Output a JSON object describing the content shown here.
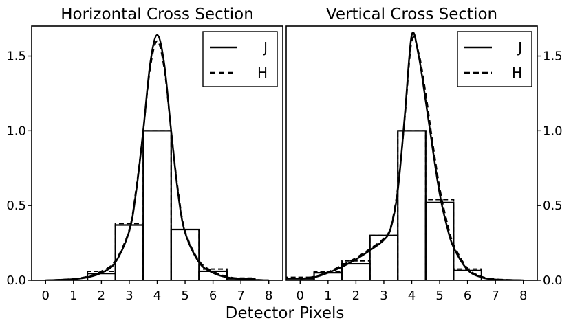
{
  "xlabel": "Detector Pixels",
  "chart_data": [
    {
      "type": "line",
      "title": "Horizontal Cross Section",
      "xlim": [
        -0.5,
        8.5
      ],
      "ylim": [
        0,
        1.7
      ],
      "xticks": [
        "0",
        "1",
        "2",
        "3",
        "4",
        "5",
        "6",
        "7",
        "8"
      ],
      "yticks": [
        "0.0",
        "0.5",
        "1.0",
        "1.5"
      ],
      "ytick_side": "left",
      "legend": "top-right",
      "bars": {
        "J": [
          0.0,
          0.0,
          0.045,
          0.37,
          1.0,
          0.34,
          0.06,
          0.01,
          0.0
        ],
        "H": [
          0.0,
          0.0,
          0.06,
          0.38,
          1.0,
          0.34,
          0.075,
          0.015,
          0.0
        ]
      },
      "series": [
        {
          "name": "J",
          "style": "solid",
          "x": [
            0,
            0.5,
            1,
            1.5,
            2,
            2.5,
            3,
            3.25,
            3.5,
            3.75,
            4,
            4.25,
            4.5,
            4.75,
            5,
            5.5,
            6,
            6.5,
            7,
            7.5,
            8
          ],
          "y": [
            0,
            0.003,
            0.008,
            0.02,
            0.05,
            0.12,
            0.33,
            0.6,
            1.0,
            1.45,
            1.64,
            1.45,
            1.0,
            0.58,
            0.32,
            0.12,
            0.05,
            0.02,
            0.008,
            0.003,
            0
          ]
        },
        {
          "name": "H",
          "style": "dashed",
          "x": [
            0,
            0.5,
            1,
            1.5,
            2,
            2.5,
            3,
            3.25,
            3.5,
            3.75,
            4,
            4.25,
            4.5,
            4.75,
            5,
            5.5,
            6,
            6.5,
            7,
            7.5,
            8
          ],
          "y": [
            0,
            0.004,
            0.01,
            0.025,
            0.06,
            0.13,
            0.34,
            0.62,
            1.0,
            1.42,
            1.6,
            1.42,
            1.0,
            0.6,
            0.33,
            0.13,
            0.06,
            0.025,
            0.01,
            0.004,
            0
          ]
        }
      ]
    },
    {
      "type": "line",
      "title": "Vertical Cross Section",
      "xlim": [
        -0.5,
        8.5
      ],
      "ylim": [
        0,
        1.7
      ],
      "xticks": [
        "0",
        "1",
        "2",
        "3",
        "4",
        "5",
        "6",
        "7",
        "8"
      ],
      "yticks": [
        "0.0",
        "0.5",
        "1.0",
        "1.5"
      ],
      "ytick_side": "right",
      "legend": "top-right",
      "bars": {
        "J": [
          0.01,
          0.05,
          0.11,
          0.3,
          1.0,
          0.52,
          0.065,
          0.0,
          0.0
        ],
        "H": [
          0.02,
          0.06,
          0.13,
          0.3,
          1.0,
          0.54,
          0.075,
          0.0,
          0.0
        ]
      },
      "series": [
        {
          "name": "J",
          "style": "solid",
          "x": [
            0,
            0.5,
            1,
            1.5,
            2,
            2.5,
            3,
            3.25,
            3.5,
            3.75,
            4,
            4.25,
            4.5,
            4.75,
            5,
            5.25,
            5.5,
            6,
            6.5,
            7,
            7.5,
            8
          ],
          "y": [
            0.01,
            0.02,
            0.05,
            0.09,
            0.14,
            0.2,
            0.27,
            0.35,
            0.6,
            1.1,
            1.64,
            1.5,
            1.2,
            0.88,
            0.58,
            0.37,
            0.22,
            0.07,
            0.02,
            0.005,
            0.002,
            0
          ]
        },
        {
          "name": "H",
          "style": "dashed",
          "x": [
            0,
            0.5,
            1,
            1.5,
            2,
            2.5,
            3,
            3.25,
            3.5,
            3.75,
            4,
            4.25,
            4.5,
            4.75,
            5,
            5.25,
            5.5,
            6,
            6.5,
            7,
            7.5,
            8
          ],
          "y": [
            0.01,
            0.025,
            0.055,
            0.1,
            0.15,
            0.21,
            0.28,
            0.36,
            0.62,
            1.08,
            1.6,
            1.52,
            1.25,
            0.92,
            0.62,
            0.4,
            0.24,
            0.08,
            0.025,
            0.008,
            0.003,
            0
          ]
        }
      ]
    }
  ]
}
